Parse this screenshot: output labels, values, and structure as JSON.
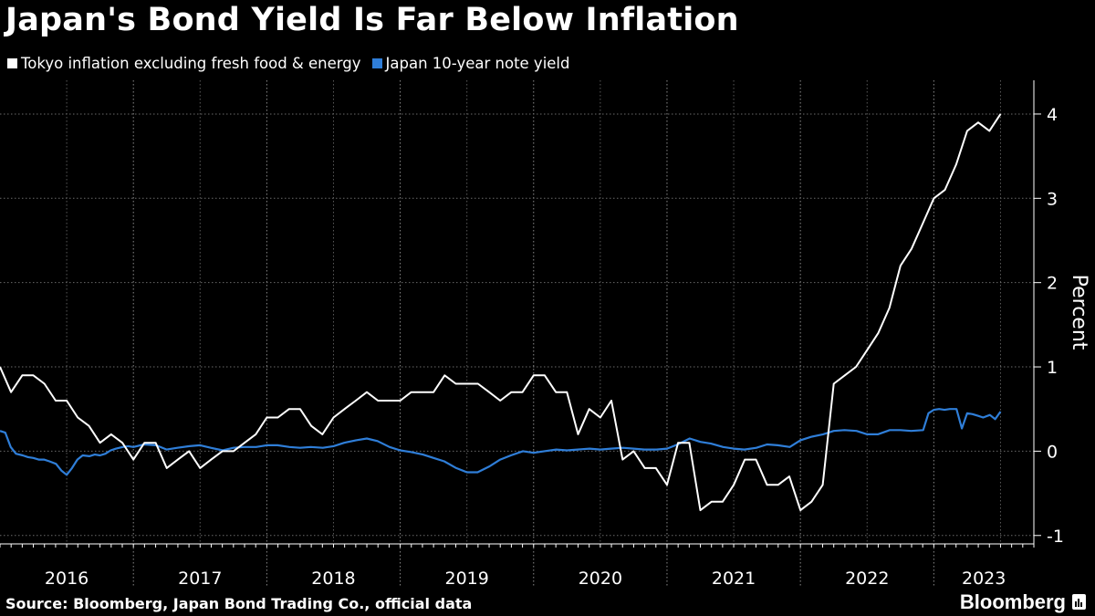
{
  "title": "Japan's Bond Yield Is Far Below Inflation",
  "legend": [
    {
      "label": "Tokyo inflation excluding fresh food & energy",
      "color": "#ffffff"
    },
    {
      "label": "Japan 10-year note yield",
      "color": "#2f7ed8"
    }
  ],
  "source": "Source: Bloomberg, Japan Bond Trading Co., official data",
  "brand": "Bloomberg",
  "chart_data": {
    "type": "line",
    "title": "Japan's Bond Yield Is Far Below Inflation",
    "xlabel": "",
    "ylabel": "Percent",
    "xlim": [
      2016.0,
      2023.75
    ],
    "ylim": [
      -1.1,
      4.4
    ],
    "yticks": [
      -1,
      0,
      1,
      2,
      3,
      4
    ],
    "ytick_labels": [
      "-1",
      "0",
      "1",
      "2",
      "3",
      "4"
    ],
    "xtick_labels": [
      "2016",
      "2017",
      "2018",
      "2019",
      "2020",
      "2021",
      "2022",
      "2023"
    ],
    "year_starts": [
      2016,
      2017,
      2018,
      2019,
      2020,
      2021,
      2022,
      2023
    ],
    "grid": true,
    "series": [
      {
        "name": "Tokyo inflation excluding fresh food & energy",
        "color": "#ffffff",
        "x": [
          2016.0,
          2016.083,
          2016.167,
          2016.25,
          2016.333,
          2016.417,
          2016.5,
          2016.583,
          2016.667,
          2016.75,
          2016.833,
          2016.917,
          2017.0,
          2017.083,
          2017.167,
          2017.25,
          2017.333,
          2017.417,
          2017.5,
          2017.583,
          2017.667,
          2017.75,
          2017.833,
          2017.917,
          2018.0,
          2018.083,
          2018.167,
          2018.25,
          2018.333,
          2018.417,
          2018.5,
          2018.583,
          2018.667,
          2018.75,
          2018.833,
          2018.917,
          2019.0,
          2019.083,
          2019.167,
          2019.25,
          2019.333,
          2019.417,
          2019.5,
          2019.583,
          2019.667,
          2019.75,
          2019.833,
          2019.917,
          2020.0,
          2020.083,
          2020.167,
          2020.25,
          2020.333,
          2020.417,
          2020.5,
          2020.583,
          2020.667,
          2020.75,
          2020.833,
          2020.917,
          2021.0,
          2021.083,
          2021.167,
          2021.25,
          2021.333,
          2021.417,
          2021.5,
          2021.583,
          2021.667,
          2021.75,
          2021.833,
          2021.917,
          2022.0,
          2022.083,
          2022.167,
          2022.25,
          2022.333,
          2022.417,
          2022.5,
          2022.583,
          2022.667,
          2022.75,
          2022.833,
          2022.917,
          2023.0,
          2023.083,
          2023.167,
          2023.25,
          2023.333,
          2023.417,
          2023.5
        ],
        "values": [
          1.0,
          0.7,
          0.9,
          0.9,
          0.8,
          0.6,
          0.6,
          0.4,
          0.3,
          0.1,
          0.2,
          0.1,
          -0.1,
          0.1,
          0.1,
          -0.2,
          -0.1,
          0.0,
          -0.2,
          -0.1,
          0.0,
          0.0,
          0.1,
          0.2,
          0.4,
          0.4,
          0.5,
          0.5,
          0.3,
          0.2,
          0.4,
          0.5,
          0.6,
          0.7,
          0.6,
          0.6,
          0.6,
          0.7,
          0.7,
          0.7,
          0.9,
          0.8,
          0.8,
          0.8,
          0.7,
          0.6,
          0.7,
          0.7,
          0.9,
          0.9,
          0.7,
          0.7,
          0.2,
          0.5,
          0.4,
          0.6,
          -0.1,
          0.0,
          -0.2,
          -0.2,
          -0.4,
          0.1,
          0.1,
          -0.7,
          -0.6,
          -0.6,
          -0.4,
          -0.1,
          -0.1,
          -0.4,
          -0.4,
          -0.3,
          -0.7,
          -0.6,
          -0.4,
          0.8,
          0.9,
          1.0,
          1.2,
          1.4,
          1.7,
          2.2,
          2.4,
          2.7,
          3.0,
          3.1,
          3.4,
          3.8,
          3.9,
          3.8,
          4.0
        ]
      },
      {
        "name": "Japan 10-year note yield",
        "color": "#2f7ed8",
        "x": [
          2016.0,
          2016.04,
          2016.08,
          2016.12,
          2016.17,
          2016.21,
          2016.25,
          2016.29,
          2016.33,
          2016.37,
          2016.42,
          2016.46,
          2016.5,
          2016.54,
          2016.58,
          2016.62,
          2016.67,
          2016.71,
          2016.75,
          2016.79,
          2016.83,
          2016.87,
          2016.92,
          2016.96,
          2017.0,
          2017.08,
          2017.17,
          2017.25,
          2017.33,
          2017.42,
          2017.5,
          2017.58,
          2017.67,
          2017.75,
          2017.83,
          2017.92,
          2018.0,
          2018.08,
          2018.17,
          2018.25,
          2018.33,
          2018.42,
          2018.5,
          2018.58,
          2018.67,
          2018.75,
          2018.83,
          2018.92,
          2019.0,
          2019.08,
          2019.17,
          2019.25,
          2019.33,
          2019.42,
          2019.5,
          2019.58,
          2019.67,
          2019.75,
          2019.83,
          2019.92,
          2020.0,
          2020.08,
          2020.17,
          2020.25,
          2020.33,
          2020.42,
          2020.5,
          2020.58,
          2020.67,
          2020.75,
          2020.83,
          2020.92,
          2021.0,
          2021.08,
          2021.17,
          2021.25,
          2021.33,
          2021.42,
          2021.5,
          2021.58,
          2021.67,
          2021.75,
          2021.83,
          2021.92,
          2022.0,
          2022.08,
          2022.17,
          2022.25,
          2022.33,
          2022.42,
          2022.5,
          2022.58,
          2022.67,
          2022.75,
          2022.83,
          2022.92,
          2022.96,
          2023.0,
          2023.04,
          2023.08,
          2023.12,
          2023.17,
          2023.21,
          2023.25,
          2023.29,
          2023.33,
          2023.37,
          2023.42,
          2023.46,
          2023.5
        ],
        "values": [
          0.24,
          0.22,
          0.05,
          -0.03,
          -0.05,
          -0.07,
          -0.08,
          -0.1,
          -0.1,
          -0.12,
          -0.15,
          -0.23,
          -0.28,
          -0.2,
          -0.1,
          -0.05,
          -0.06,
          -0.04,
          -0.05,
          -0.03,
          0.01,
          0.03,
          0.05,
          0.06,
          0.05,
          0.08,
          0.07,
          0.02,
          0.04,
          0.06,
          0.07,
          0.04,
          0.01,
          0.04,
          0.05,
          0.05,
          0.07,
          0.07,
          0.05,
          0.04,
          0.05,
          0.04,
          0.06,
          0.1,
          0.13,
          0.15,
          0.12,
          0.05,
          0.01,
          -0.01,
          -0.04,
          -0.08,
          -0.12,
          -0.2,
          -0.25,
          -0.25,
          -0.18,
          -0.1,
          -0.05,
          0.0,
          -0.02,
          0.0,
          0.02,
          0.01,
          0.02,
          0.03,
          0.02,
          0.03,
          0.04,
          0.03,
          0.02,
          0.02,
          0.03,
          0.08,
          0.15,
          0.11,
          0.09,
          0.05,
          0.03,
          0.02,
          0.04,
          0.08,
          0.07,
          0.05,
          0.13,
          0.17,
          0.2,
          0.24,
          0.25,
          0.24,
          0.2,
          0.2,
          0.25,
          0.25,
          0.24,
          0.25,
          0.45,
          0.49,
          0.5,
          0.49,
          0.5,
          0.5,
          0.27,
          0.45,
          0.44,
          0.42,
          0.4,
          0.43,
          0.38,
          0.47
        ]
      }
    ]
  }
}
